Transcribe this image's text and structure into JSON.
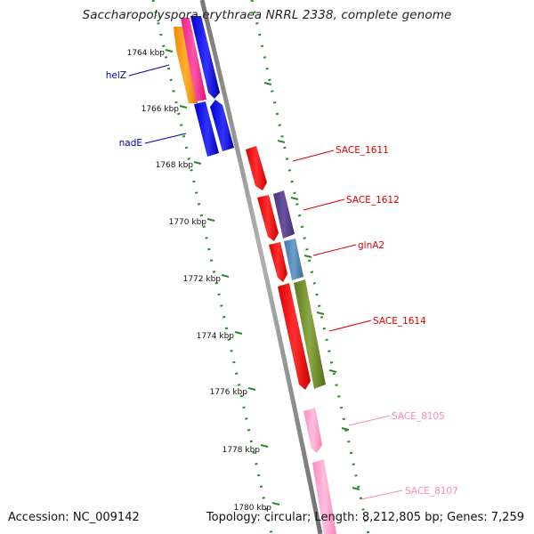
{
  "title": "Saccharopolyspora erythraea NRRL 2338, complete genome",
  "footer": {
    "accession": "Accession: NC_009142",
    "summary": "Topology: circular; Length: 8,212,805 bp; Genes: 7,259"
  },
  "ticks": [
    "1764 kbp",
    "1766 kbp",
    "1768 kbp",
    "1770 kbp",
    "1772 kbp",
    "1774 kbp",
    "1776 kbp",
    "1778 kbp",
    "1780 kbp"
  ],
  "genes": [
    {
      "id": "helZ",
      "color": "#0000ee",
      "label_color": "#0000aa"
    },
    {
      "id": "nadE",
      "color": "#0000ee",
      "label_color": "#0000aa"
    },
    {
      "id": "SACE_1611",
      "color": "#ff0000",
      "label_color": "#dd0000"
    },
    {
      "id": "SACE_1612",
      "color": "#5a3f8e",
      "label_color": "#dd0000"
    },
    {
      "id": "glnA2",
      "color": "#4f86b5",
      "label_color": "#dd0000"
    },
    {
      "id": "SACE_1614",
      "color": "#6f8a2a",
      "label_color": "#dd0000"
    },
    {
      "id": "SACE_8105",
      "color": "#ff99cc",
      "label_color": "#ff88bb"
    },
    {
      "id": "SACE_8107",
      "color": "#ff99cc",
      "label_color": "#ff88bb"
    }
  ],
  "colors": {
    "backbone": "#8a8a8a",
    "tick_marks": "#2a8a2a",
    "orange_gene": "#ff9900",
    "magenta_gene": "#ff3399"
  }
}
